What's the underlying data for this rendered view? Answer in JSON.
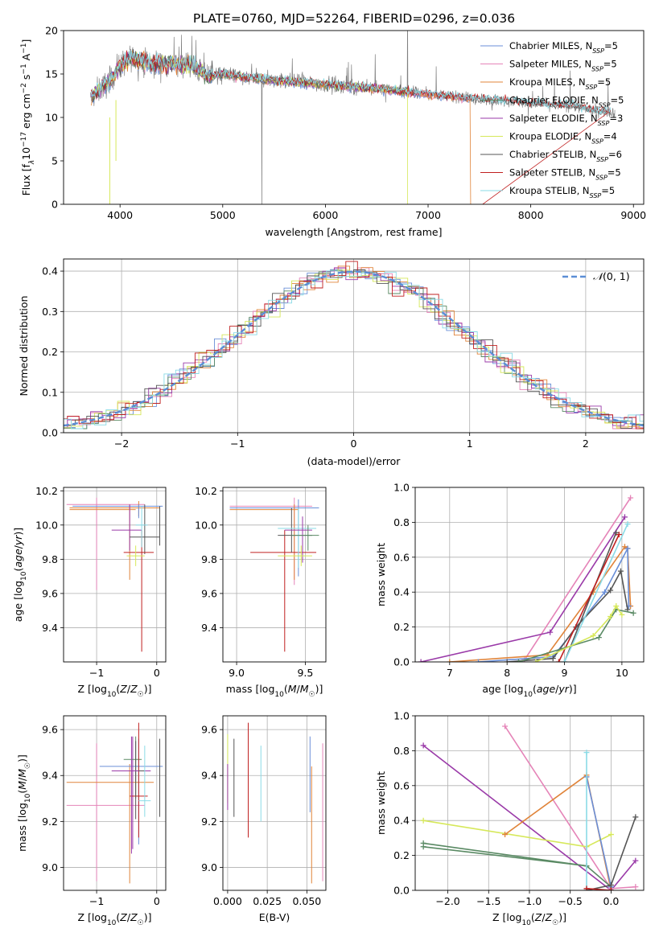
{
  "title": "PLATE=0760, MJD=52264, FIBERID=0296, z=0.036",
  "colors": {
    "chabrier_miles": "#6a8fd8",
    "salpeter_miles": "#e584b8",
    "kroupa_miles": "#e0843a",
    "chabrier_elodie": "#5a8a64",
    "salpeter_elodie": "#9a3aa8",
    "kroupa_elodie": "#d6e85a",
    "chabrier_stelib": "#555555",
    "salpeter_stelib": "#c02020",
    "kroupa_stelib": "#8adbe6",
    "data": "#808080",
    "grid": "#b0b0b0",
    "normal": "#5b8ed6"
  },
  "chart_data": [
    {
      "id": "spectrum",
      "type": "line",
      "xlabel": "wavelength [Angstrom, rest frame]",
      "ylabel": "Flux [f",
      "xlim": [
        3450,
        9100
      ],
      "ylim": [
        0,
        20
      ],
      "xticks": [
        4000,
        5000,
        6000,
        7000,
        8000,
        9000
      ],
      "yticks": [
        0,
        5,
        10,
        15,
        20
      ],
      "grid": false,
      "legend_position": "top-right",
      "legend": [
        {
          "imf": "Chabrier",
          "lib": "MILES",
          "n": 5
        },
        {
          "imf": "Salpeter",
          "lib": "MILES",
          "n": 5
        },
        {
          "imf": "Kroupa",
          "lib": "MILES",
          "n": 5
        },
        {
          "imf": "Chabrier",
          "lib": "ELODIE",
          "n": 5
        },
        {
          "imf": "Salpeter",
          "lib": "ELODIE",
          "n": 3
        },
        {
          "imf": "Kroupa",
          "lib": "ELODIE",
          "n": 4
        },
        {
          "imf": "Chabrier",
          "lib": "STELIB",
          "n": 6
        },
        {
          "imf": "Salpeter",
          "lib": "STELIB",
          "n": 5
        },
        {
          "imf": "Kroupa",
          "lib": "STELIB",
          "n": 5
        }
      ],
      "continuum": {
        "x": [
          3700,
          3800,
          3900,
          4000,
          4100,
          4300,
          4500,
          4700,
          4850,
          5000,
          5200,
          5500,
          5800,
          6000,
          6300,
          6600,
          6900,
          7200,
          7500,
          7800,
          8100,
          8400,
          8600,
          8800,
          9000
        ],
        "y": [
          12.0,
          13.2,
          14.2,
          16.0,
          16.8,
          16.2,
          16.2,
          16.0,
          14.8,
          15.0,
          14.6,
          14.3,
          14.0,
          13.8,
          13.5,
          13.2,
          12.8,
          12.5,
          12.1,
          11.9,
          11.5,
          11.3,
          10.8,
          10.6,
          10.6
        ]
      }
    },
    {
      "id": "residual_hist",
      "type": "bar",
      "xlabel": "(data-model)/error",
      "ylabel": "Normed distribution",
      "xlim": [
        -2.5,
        2.5
      ],
      "ylim": [
        0,
        0.43
      ],
      "xticks": [
        -2,
        -1,
        0,
        1,
        2
      ],
      "yticks": [
        0.0,
        0.1,
        0.2,
        0.3,
        0.4
      ],
      "grid": true,
      "legend_position": "top-right",
      "legend_label": "N(0, 1)",
      "bin_width": 0.1
    },
    {
      "id": "age_vs_Z",
      "type": "scatter",
      "xlabel": "Z [log10(Z/Z☉)]",
      "ylabel": "age [log10(age/yr)]",
      "xlim": [
        -1.55,
        0.15
      ],
      "ylim": [
        9.2,
        10.22
      ],
      "xticks": [
        -1,
        0
      ],
      "yticks": [
        9.4,
        9.6,
        9.8,
        10.0,
        10.2
      ],
      "grid": true,
      "errorbars": [
        {
          "x": -1.0,
          "xlo": -1.5,
          "xhi": -0.2,
          "y": 10.12,
          "ylo": 9.62,
          "yhi": 10.16,
          "c": "salpeter_miles"
        },
        {
          "x": -0.3,
          "xlo": -1.45,
          "xhi": 0.05,
          "y": 10.1,
          "ylo": 10.05,
          "yhi": 10.14,
          "c": "kroupa_miles"
        },
        {
          "x": -0.45,
          "xlo": -1.45,
          "xhi": -0.35,
          "y": 10.09,
          "ylo": 9.68,
          "yhi": 10.12,
          "c": "kroupa_miles"
        },
        {
          "x": -0.3,
          "xlo": -1.4,
          "xhi": 0.1,
          "y": 10.11,
          "ylo": 10.04,
          "yhi": 10.12,
          "c": "chabrier_miles"
        },
        {
          "x": -0.45,
          "xlo": -0.75,
          "xhi": -0.25,
          "y": 9.97,
          "ylo": 9.85,
          "yhi": 10.12,
          "c": "salpeter_elodie"
        },
        {
          "x": -0.2,
          "xlo": -0.45,
          "xhi": 0.05,
          "y": 9.93,
          "ylo": 9.83,
          "yhi": 10.12,
          "c": "chabrier_stelib"
        },
        {
          "x": -0.25,
          "xlo": -0.55,
          "xhi": -0.05,
          "y": 9.84,
          "ylo": 9.26,
          "yhi": 9.97,
          "c": "salpeter_stelib"
        },
        {
          "x": -0.35,
          "xlo": -0.5,
          "xhi": -0.2,
          "y": 9.82,
          "ylo": 9.76,
          "yhi": 9.88,
          "c": "kroupa_elodie"
        },
        {
          "x": -0.25,
          "xlo": -0.35,
          "xhi": -0.15,
          "y": 10.0,
          "ylo": 9.87,
          "yhi": 10.11,
          "c": "kroupa_stelib"
        },
        {
          "x": 0.05,
          "xlo": 0.05,
          "xhi": 0.05,
          "y": 9.94,
          "ylo": 9.88,
          "yhi": 10.11,
          "c": "chabrier_stelib"
        }
      ]
    },
    {
      "id": "age_vs_mass",
      "type": "scatter",
      "xlabel": "mass [log10(M/M☉)]",
      "ylabel": "",
      "xlim": [
        8.9,
        9.65
      ],
      "ylim": [
        9.2,
        10.22
      ],
      "xticks": [
        9.0,
        9.5
      ],
      "yticks": [
        9.4,
        9.6,
        9.8,
        10.0,
        10.2
      ],
      "grid": true,
      "errorbars": [
        {
          "x": 9.42,
          "xlo": 8.95,
          "xhi": 9.55,
          "y": 10.11,
          "ylo": 9.65,
          "yhi": 10.16,
          "c": "salpeter_miles"
        },
        {
          "x": 9.45,
          "xlo": 8.95,
          "xhi": 9.6,
          "y": 10.1,
          "ylo": 9.7,
          "yhi": 10.15,
          "c": "chabrier_miles"
        },
        {
          "x": 9.42,
          "xlo": 8.95,
          "xhi": 9.45,
          "y": 10.09,
          "ylo": 9.68,
          "yhi": 10.12,
          "c": "kroupa_miles"
        },
        {
          "x": 9.35,
          "xlo": 9.1,
          "xhi": 9.58,
          "y": 9.84,
          "ylo": 9.26,
          "yhi": 9.97,
          "c": "salpeter_stelib"
        },
        {
          "x": 9.4,
          "xlo": 9.3,
          "xhi": 9.55,
          "y": 9.94,
          "ylo": 9.84,
          "yhi": 10.1,
          "c": "chabrier_stelib"
        },
        {
          "x": 9.45,
          "xlo": 9.3,
          "xhi": 9.58,
          "y": 9.98,
          "ylo": 9.75,
          "yhi": 10.1,
          "c": "kroupa_stelib"
        },
        {
          "x": 9.48,
          "xlo": 9.35,
          "xhi": 9.55,
          "y": 9.97,
          "ylo": 9.78,
          "yhi": 10.05,
          "c": "salpeter_elodie"
        },
        {
          "x": 9.47,
          "xlo": 9.3,
          "xhi": 9.55,
          "y": 9.82,
          "ylo": 9.76,
          "yhi": 9.88,
          "c": "kroupa_elodie"
        },
        {
          "x": 9.52,
          "xlo": 9.4,
          "xhi": 9.6,
          "y": 9.94,
          "ylo": 9.85,
          "yhi": 10.0,
          "c": "chabrier_elodie"
        }
      ]
    },
    {
      "id": "weight_vs_age",
      "type": "line",
      "xlabel": "age [log10(age/yr)]",
      "ylabel": "mass weight",
      "xlim": [
        6.4,
        10.38
      ],
      "ylim": [
        0,
        1.0
      ],
      "xticks": [
        7,
        8,
        9,
        10
      ],
      "yticks": [
        0.0,
        0.2,
        0.4,
        0.6,
        0.8,
        1.0
      ],
      "grid": true,
      "series": [
        {
          "c": "salpeter_miles",
          "x": [
            8.3,
            10.15
          ],
          "y": [
            0.01,
            0.94
          ]
        },
        {
          "c": "salpeter_elodie",
          "x": [
            6.5,
            8.75,
            10.05
          ],
          "y": [
            0.0,
            0.17,
            0.83
          ]
        },
        {
          "c": "kroupa_miles",
          "x": [
            7.0,
            8.7,
            9.5,
            10.05,
            10.1,
            10.15
          ],
          "y": [
            0.0,
            0.04,
            0.4,
            0.66,
            0.65,
            0.32
          ]
        },
        {
          "c": "chabrier_miles",
          "x": [
            7.5,
            8.8,
            9.7,
            10.1,
            10.12
          ],
          "y": [
            0.0,
            0.03,
            0.4,
            0.65,
            0.32
          ]
        },
        {
          "c": "chabrier_stelib",
          "x": [
            8.0,
            8.8,
            9.2,
            9.8,
            9.98,
            10.1
          ],
          "y": [
            0.0,
            0.02,
            0.2,
            0.41,
            0.52,
            0.3
          ]
        },
        {
          "c": "chabrier_stelib",
          "x": [
            9.0,
            9.9
          ],
          "y": [
            0.0,
            0.74
          ]
        },
        {
          "c": "salpeter_stelib",
          "x": [
            8.9,
            9.95
          ],
          "y": [
            0.0,
            0.73
          ]
        },
        {
          "c": "kroupa_stelib",
          "x": [
            9.0,
            10.1
          ],
          "y": [
            0.0,
            0.79
          ]
        },
        {
          "c": "chabrier_elodie",
          "x": [
            8.2,
            9.6,
            9.9,
            10.2
          ],
          "y": [
            0.0,
            0.14,
            0.3,
            0.28
          ]
        },
        {
          "c": "kroupa_elodie",
          "x": [
            8.5,
            9.5,
            9.8,
            9.9,
            10.0
          ],
          "y": [
            0.0,
            0.15,
            0.26,
            0.32,
            0.27
          ]
        }
      ]
    },
    {
      "id": "mass_vs_Z",
      "type": "scatter",
      "xlabel": "Z [log10(Z/Z☉)]",
      "ylabel": "mass [log10(M/M☉)]",
      "xlim": [
        -1.55,
        0.15
      ],
      "ylim": [
        8.9,
        9.66
      ],
      "xticks": [
        -1,
        0
      ],
      "yticks": [
        9.0,
        9.2,
        9.4,
        9.6
      ],
      "grid": true,
      "errorbars": [
        {
          "x": -1.0,
          "xlo": -1.5,
          "xhi": -0.2,
          "y": 9.27,
          "ylo": 8.94,
          "yhi": 9.54,
          "c": "salpeter_miles"
        },
        {
          "x": -0.45,
          "xlo": -1.5,
          "xhi": -0.05,
          "y": 9.37,
          "ylo": 8.93,
          "yhi": 9.45,
          "c": "kroupa_miles"
        },
        {
          "x": -0.3,
          "xlo": -0.95,
          "xhi": 0.1,
          "y": 9.44,
          "ylo": 9.1,
          "yhi": 9.56,
          "c": "chabrier_miles"
        },
        {
          "x": -0.4,
          "xlo": -0.75,
          "xhi": -0.1,
          "y": 9.42,
          "ylo": 9.08,
          "yhi": 9.57,
          "c": "salpeter_elodie"
        },
        {
          "x": -0.35,
          "xlo": -0.55,
          "xhi": -0.25,
          "y": 9.47,
          "ylo": 9.3,
          "yhi": 9.57,
          "c": "chabrier_elodie"
        },
        {
          "x": -0.3,
          "xlo": -0.45,
          "xhi": -0.15,
          "y": 9.31,
          "ylo": 9.13,
          "yhi": 9.63,
          "c": "salpeter_stelib"
        },
        {
          "x": -0.35,
          "xlo": -0.45,
          "xhi": -0.2,
          "y": 9.42,
          "ylo": 9.21,
          "yhi": 9.55,
          "c": "chabrier_stelib"
        },
        {
          "x": -0.2,
          "xlo": -0.3,
          "xhi": -0.1,
          "y": 9.29,
          "ylo": 9.22,
          "yhi": 9.53,
          "c": "kroupa_stelib"
        },
        {
          "x": 0.05,
          "xlo": 0.05,
          "xhi": 0.05,
          "y": 9.41,
          "ylo": 9.22,
          "yhi": 9.56,
          "c": "chabrier_stelib"
        },
        {
          "x": -0.42,
          "xlo": -0.55,
          "xhi": -0.3,
          "y": 9.42,
          "ylo": 9.06,
          "yhi": 9.57,
          "c": "salpeter_elodie"
        }
      ]
    },
    {
      "id": "mass_vs_ebv",
      "type": "scatter",
      "xlabel": "E(B-V)",
      "ylabel": "",
      "xlim": [
        -0.003,
        0.062
      ],
      "ylim": [
        8.9,
        9.66
      ],
      "xticks": [
        0.0,
        0.025,
        0.05
      ],
      "yticks": [
        9.0,
        9.2,
        9.4,
        9.6
      ],
      "grid": true,
      "errorbars": [
        {
          "x": 0.0,
          "ylo": 9.28,
          "yhi": 9.58,
          "c": "kroupa_elodie"
        },
        {
          "x": 0.0,
          "ylo": 9.25,
          "yhi": 9.45,
          "c": "salpeter_elodie"
        },
        {
          "x": 0.004,
          "ylo": 9.22,
          "yhi": 9.56,
          "c": "chabrier_stelib"
        },
        {
          "x": 0.013,
          "ylo": 9.13,
          "yhi": 9.63,
          "c": "salpeter_stelib"
        },
        {
          "x": 0.021,
          "ylo": 9.2,
          "yhi": 9.53,
          "c": "kroupa_stelib"
        },
        {
          "x": 0.052,
          "ylo": 9.24,
          "yhi": 9.57,
          "c": "chabrier_miles"
        },
        {
          "x": 0.053,
          "ylo": 8.93,
          "yhi": 9.44,
          "c": "kroupa_miles"
        },
        {
          "x": 0.06,
          "ylo": 8.94,
          "yhi": 9.54,
          "c": "salpeter_miles"
        }
      ]
    },
    {
      "id": "weight_vs_Z",
      "type": "line",
      "xlabel": "Z [log10(Z/Z☉)]",
      "ylabel": "mass weight",
      "xlim": [
        -2.4,
        0.4
      ],
      "ylim": [
        0,
        1.0
      ],
      "xticks": [
        -2.0,
        -1.5,
        -1.0,
        -0.5,
        0.0
      ],
      "yticks": [
        0.0,
        0.2,
        0.4,
        0.6,
        0.8,
        1.0
      ],
      "grid": true,
      "series": [
        {
          "c": "salpeter_elodie",
          "x": [
            -2.3,
            0.0,
            0.3
          ],
          "y": [
            0.83,
            0.0,
            0.17
          ]
        },
        {
          "c": "salpeter_miles",
          "x": [
            -1.3,
            0.0,
            0.3
          ],
          "y": [
            0.94,
            0.01,
            0.02
          ]
        },
        {
          "c": "kroupa_elodie",
          "x": [
            -2.3,
            -0.3,
            0.0
          ],
          "y": [
            0.4,
            0.25,
            0.32
          ]
        },
        {
          "c": "chabrier_elodie",
          "x": [
            -2.3,
            -0.3,
            0.0
          ],
          "y": [
            0.27,
            0.14,
            0.02
          ]
        },
        {
          "c": "chabrier_elodie",
          "x": [
            -2.3,
            -0.3
          ],
          "y": [
            0.25,
            0.14
          ]
        },
        {
          "c": "kroupa_miles",
          "x": [
            -1.3,
            -0.3,
            0.0
          ],
          "y": [
            0.32,
            0.66,
            0.0
          ]
        },
        {
          "c": "chabrier_miles",
          "x": [
            -0.3,
            0.0
          ],
          "y": [
            0.65,
            0.02
          ]
        },
        {
          "c": "kroupa_stelib",
          "x": [
            -0.3,
            -0.3,
            0.0
          ],
          "y": [
            0.79,
            0.0,
            0.0
          ]
        },
        {
          "c": "chabrier_stelib",
          "x": [
            -0.3,
            0.0,
            0.3
          ],
          "y": [
            0.0,
            0.03,
            0.42
          ]
        },
        {
          "c": "salpeter_stelib",
          "x": [
            -0.3,
            0.0
          ],
          "y": [
            0.01,
            0.0
          ]
        }
      ]
    }
  ]
}
